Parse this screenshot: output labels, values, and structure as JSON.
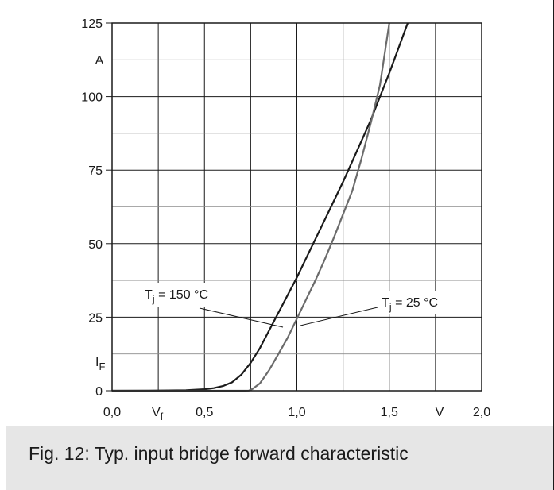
{
  "chart_data": {
    "type": "line",
    "xlim": [
      0.0,
      2.0
    ],
    "ylim": [
      0,
      125
    ],
    "x_ticks": [
      0.0,
      0.25,
      0.5,
      0.75,
      1.0,
      1.25,
      1.5,
      1.75,
      2.0
    ],
    "y_ticks": [
      0,
      12.5,
      25,
      37.5,
      50,
      62.5,
      75,
      87.5,
      100,
      112.5,
      125
    ],
    "x_tick_labels": [
      {
        "value": 0.0,
        "label": "0,0"
      },
      {
        "value": 0.5,
        "label": "0,5"
      },
      {
        "value": 1.0,
        "label": "1,0"
      },
      {
        "value": 1.5,
        "label": "1,5"
      },
      {
        "value": 2.0,
        "label": "2,0"
      }
    ],
    "y_tick_labels": [
      {
        "value": 0,
        "label": "0"
      },
      {
        "value": 25,
        "label": "25"
      },
      {
        "value": 50,
        "label": "50"
      },
      {
        "value": 75,
        "label": "75"
      },
      {
        "value": 100,
        "label": "100"
      },
      {
        "value": 125,
        "label": "125"
      }
    ],
    "x_axis_symbol": "V",
    "x_axis_subscript": "f",
    "x_axis_unit": "V",
    "y_axis_symbol": "I",
    "y_axis_subscript": "F",
    "y_axis_unit": "A",
    "grid": true,
    "series": [
      {
        "label_main": "T",
        "label_sub": "j",
        "label_rest": " = 150 °C",
        "color": "#1a1a1a",
        "x": [
          0.0,
          0.2,
          0.4,
          0.5,
          0.55,
          0.6,
          0.65,
          0.7,
          0.75,
          0.8,
          0.85,
          0.9,
          0.95,
          1.0,
          1.05,
          1.1,
          1.15,
          1.2,
          1.25,
          1.3,
          1.35,
          1.4,
          1.45,
          1.5,
          1.55,
          1.6
        ],
        "y": [
          0,
          0.05,
          0.2,
          0.5,
          0.9,
          1.6,
          2.9,
          5.5,
          9.5,
          14.5,
          20.5,
          26.5,
          32.5,
          38.5,
          45,
          51.5,
          58,
          64.5,
          71,
          78,
          85,
          92,
          100,
          108,
          116.5,
          125
        ]
      },
      {
        "label_main": "T",
        "label_sub": "j",
        "label_rest": " = 25 °C",
        "color": "#6b6b6b",
        "x": [
          0.0,
          0.5,
          0.7,
          0.74,
          0.76,
          0.8,
          0.85,
          0.9,
          0.95,
          1.0,
          1.05,
          1.1,
          1.15,
          1.2,
          1.25,
          1.3,
          1.35,
          1.4,
          1.45,
          1.5
        ],
        "y": [
          0,
          0,
          0,
          0.05,
          0.6,
          2.5,
          7,
          12.5,
          18,
          24.5,
          31,
          37.5,
          44.5,
          52,
          60,
          68,
          79,
          91,
          104,
          125
        ]
      }
    ]
  },
  "caption": "Fig. 12: Typ. input bridge forward characteristic"
}
